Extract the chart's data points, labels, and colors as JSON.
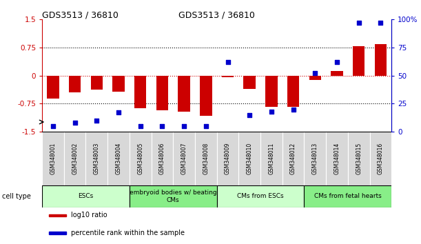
{
  "title": "GDS3513 / 36810",
  "samples": [
    "GSM348001",
    "GSM348002",
    "GSM348003",
    "GSM348004",
    "GSM348005",
    "GSM348006",
    "GSM348007",
    "GSM348008",
    "GSM348009",
    "GSM348010",
    "GSM348011",
    "GSM348012",
    "GSM348013",
    "GSM348014",
    "GSM348015",
    "GSM348016"
  ],
  "log10_ratio": [
    -0.62,
    -0.45,
    -0.38,
    -0.42,
    -0.87,
    -0.92,
    -0.97,
    -1.07,
    -0.04,
    -0.35,
    -0.83,
    -0.83,
    -0.12,
    0.12,
    0.78,
    0.85
  ],
  "percentile_rank": [
    5,
    8,
    10,
    17,
    5,
    5,
    5,
    5,
    62,
    15,
    18,
    20,
    52,
    62,
    97,
    97
  ],
  "cell_types": [
    {
      "label": "ESCs",
      "start": 0,
      "end": 4,
      "color": "#ccffcc"
    },
    {
      "label": "embryoid bodies w/ beating\nCMs",
      "start": 4,
      "end": 8,
      "color": "#88ee88"
    },
    {
      "label": "CMs from ESCs",
      "start": 8,
      "end": 12,
      "color": "#ccffcc"
    },
    {
      "label": "CMs from fetal hearts",
      "start": 12,
      "end": 16,
      "color": "#88ee88"
    }
  ],
  "bar_color": "#cc0000",
  "dot_color": "#0000cc",
  "ylim_left": [
    -1.5,
    1.5
  ],
  "ylim_right": [
    0,
    100
  ],
  "yticks_left": [
    -1.5,
    -0.75,
    0,
    0.75,
    1.5
  ],
  "yticks_right": [
    0,
    25,
    50,
    75,
    100
  ],
  "ytick_labels_left": [
    "-1.5",
    "-0.75",
    "0",
    "0.75",
    "1.5"
  ],
  "ytick_labels_right": [
    "0",
    "25",
    "50",
    "75",
    "100%"
  ],
  "dotted_lines_black": [
    -0.75,
    0.75
  ],
  "dotted_line_red": 0,
  "legend_items": [
    {
      "color": "#cc0000",
      "label": "log10 ratio"
    },
    {
      "color": "#0000cc",
      "label": "percentile rank within the sample"
    }
  ],
  "fig_width": 6.11,
  "fig_height": 3.54,
  "dpi": 100
}
